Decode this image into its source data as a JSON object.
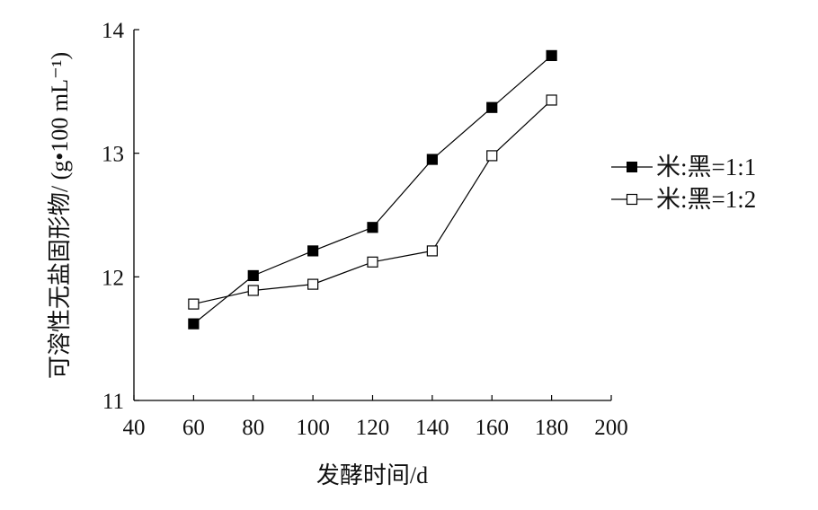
{
  "chart_data": {
    "type": "line",
    "xlabel": "发酵时间/d",
    "ylabel": "可溶性无盐固形物/ (g•100 mL⁻¹)",
    "xlim": [
      40,
      200
    ],
    "ylim": [
      11,
      14
    ],
    "xticks": [
      40,
      60,
      80,
      100,
      120,
      140,
      160,
      180,
      200
    ],
    "yticks": [
      11,
      12,
      13,
      14
    ],
    "x": [
      60,
      80,
      100,
      120,
      140,
      160,
      180
    ],
    "grid": false,
    "legend_position": "right",
    "series": [
      {
        "name": "米:黑=1:1",
        "marker": "filled-square",
        "values": [
          11.62,
          12.01,
          12.21,
          12.4,
          12.95,
          13.37,
          13.79
        ]
      },
      {
        "name": "米:黑=1:2",
        "marker": "open-square",
        "values": [
          11.78,
          11.89,
          11.94,
          12.12,
          12.21,
          12.98,
          13.43
        ]
      }
    ]
  }
}
